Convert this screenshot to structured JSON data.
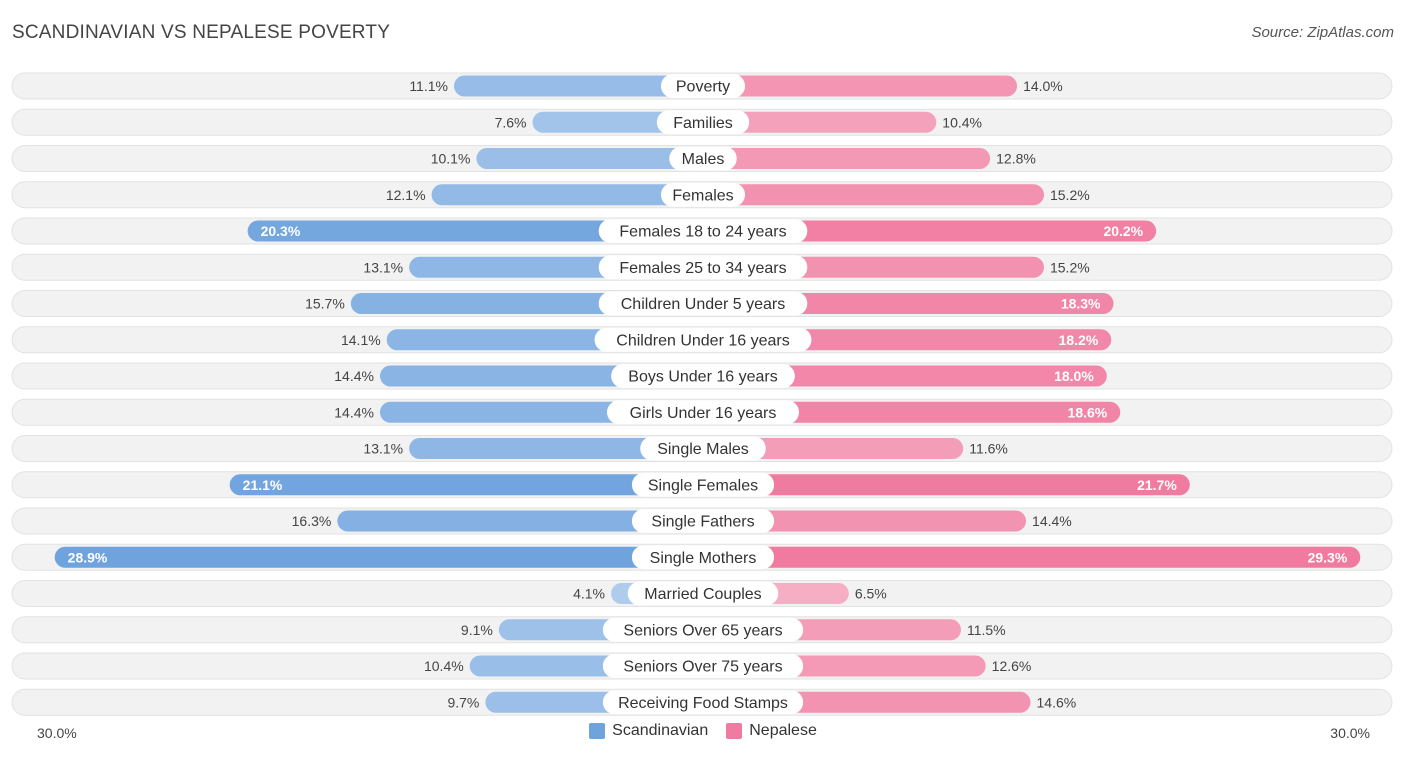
{
  "header": {
    "title": "SCANDINAVIAN VS NEPALESE POVERTY",
    "source": "Source: ZipAtlas.com"
  },
  "chart_data": {
    "type": "bar",
    "orientation": "horizontal-diverging",
    "title": "SCANDINAVIAN VS NEPALESE POVERTY",
    "xlim": [
      0,
      30
    ],
    "axis_min_label": "30.0%",
    "axis_max_label": "30.0%",
    "categories": [
      "Poverty",
      "Families",
      "Males",
      "Females",
      "Females 18 to 24 years",
      "Females 25 to 34 years",
      "Children Under 5 years",
      "Children Under 16 years",
      "Boys Under 16 years",
      "Girls Under 16 years",
      "Single Males",
      "Single Females",
      "Single Fathers",
      "Single Mothers",
      "Married Couples",
      "Seniors Over 65 years",
      "Seniors Over 75 years",
      "Receiving Food Stamps"
    ],
    "series": [
      {
        "name": "Scandinavian",
        "color": "#6fa3de",
        "values": [
          11.1,
          7.6,
          10.1,
          12.1,
          20.3,
          13.1,
          15.7,
          14.1,
          14.4,
          14.4,
          13.1,
          21.1,
          16.3,
          28.9,
          4.1,
          9.1,
          10.4,
          9.7
        ],
        "labels": [
          "11.1%",
          "7.6%",
          "10.1%",
          "12.1%",
          "20.3%",
          "13.1%",
          "15.7%",
          "14.1%",
          "14.4%",
          "14.4%",
          "13.1%",
          "21.1%",
          "16.3%",
          "28.9%",
          "4.1%",
          "9.1%",
          "10.4%",
          "9.7%"
        ]
      },
      {
        "name": "Nepalese",
        "color": "#f07aa0",
        "values": [
          14.0,
          10.4,
          12.8,
          15.2,
          20.2,
          15.2,
          18.3,
          18.2,
          18.0,
          18.6,
          11.6,
          21.7,
          14.4,
          29.3,
          6.5,
          11.5,
          12.6,
          14.6
        ],
        "labels": [
          "14.0%",
          "10.4%",
          "12.8%",
          "15.2%",
          "20.2%",
          "15.2%",
          "18.3%",
          "18.2%",
          "18.0%",
          "18.6%",
          "11.6%",
          "21.7%",
          "14.4%",
          "29.3%",
          "6.5%",
          "11.5%",
          "12.6%",
          "14.6%"
        ]
      }
    ],
    "legend": [
      "Scandinavian",
      "Nepalese"
    ],
    "legend_position": "bottom-center"
  }
}
